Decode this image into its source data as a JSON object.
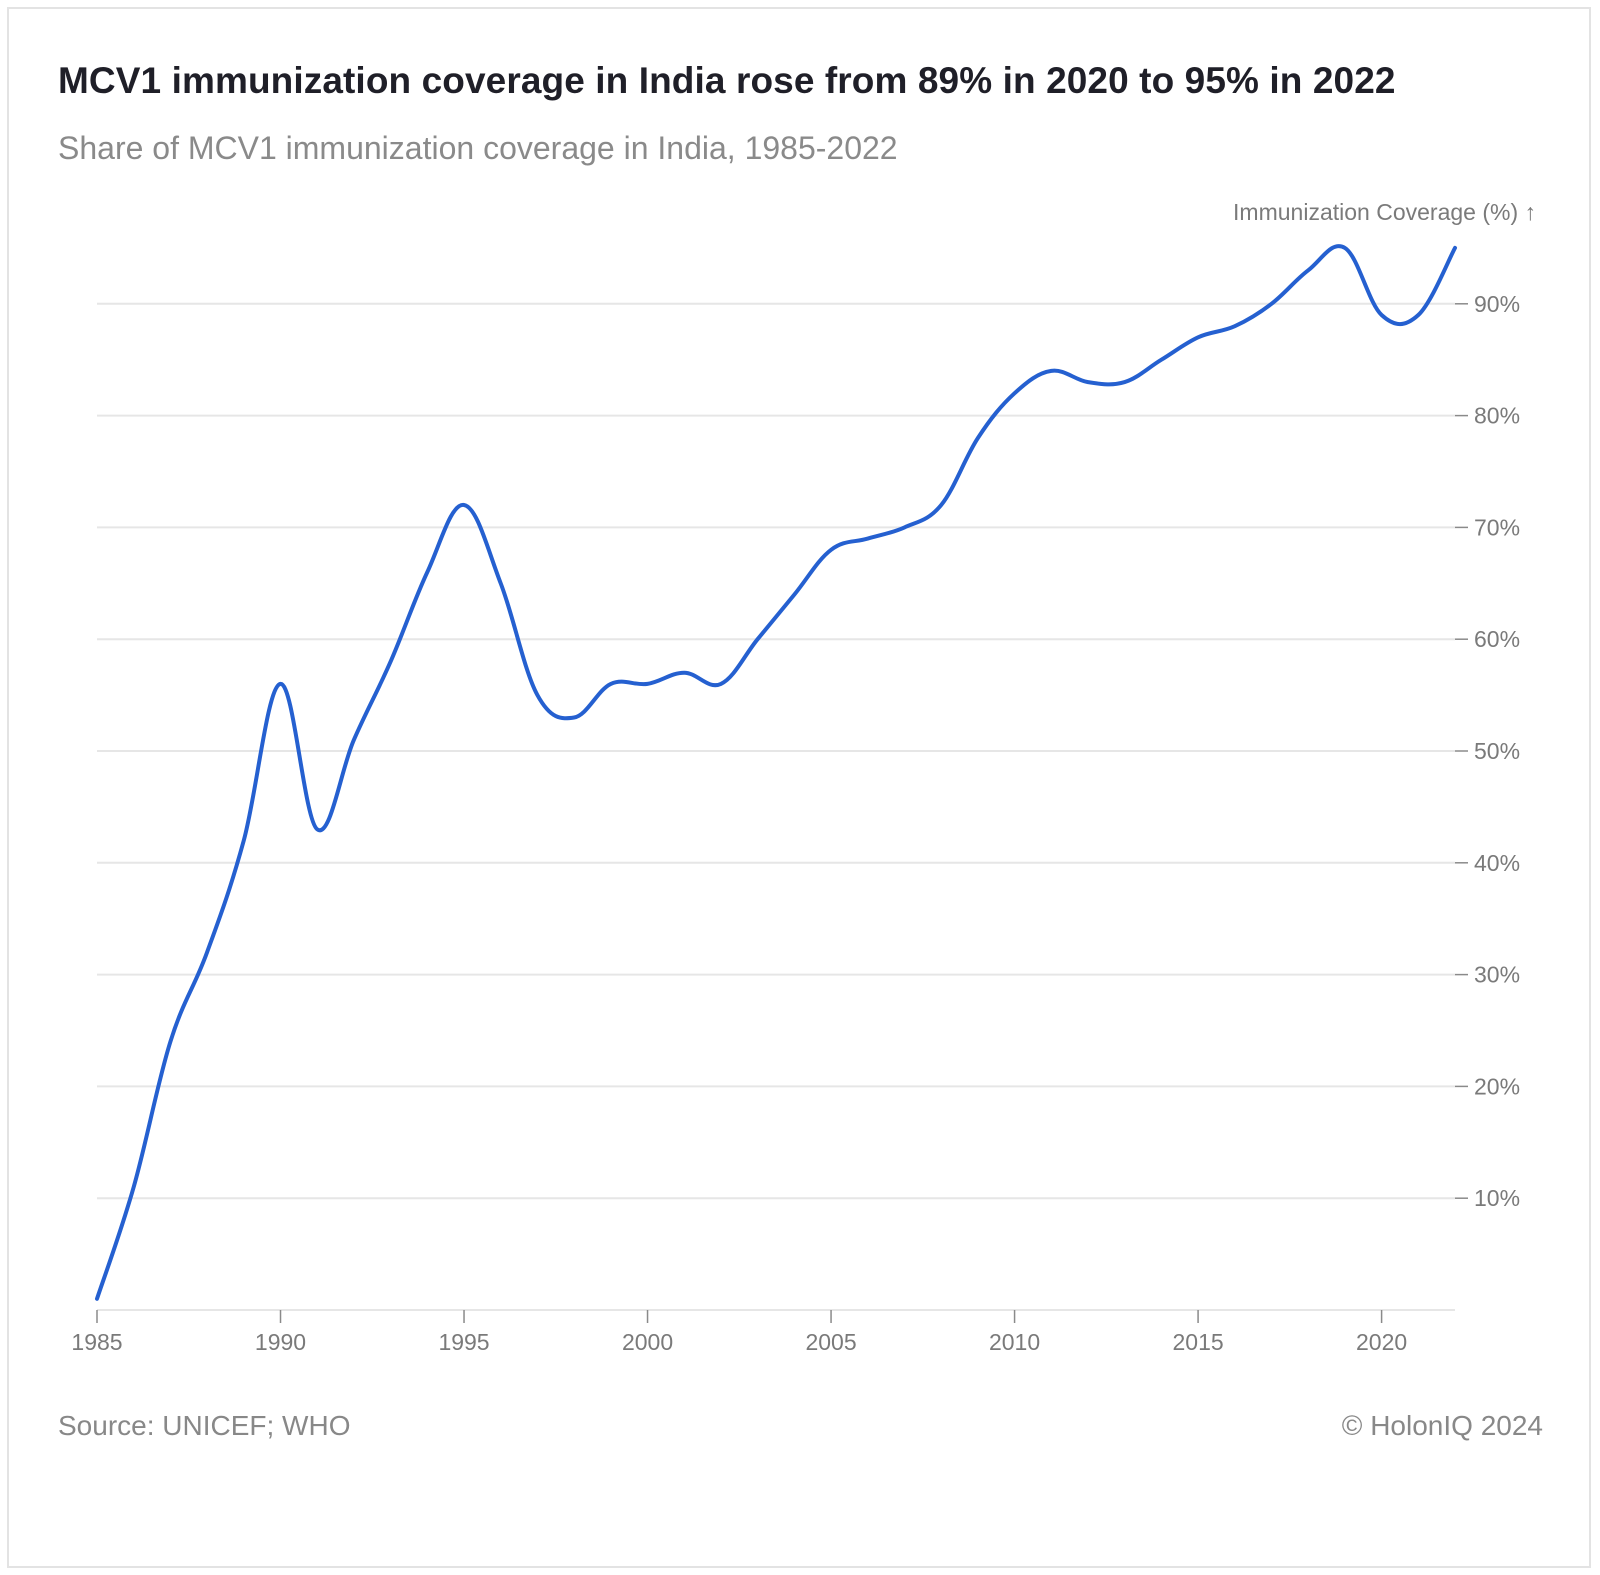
{
  "header": {
    "title": "MCV1 immunization coverage in India rose from 89% in 2020 to 95% in 2022",
    "subtitle": "Share of MCV1 immunization coverage in India, 1985-2022"
  },
  "footer": {
    "source": "Source: UNICEF; WHO",
    "copyright": "© HolonIQ 2024"
  },
  "chart_data": {
    "type": "line",
    "title": "MCV1 immunization coverage in India rose from 89% in 2020 to 95% in 2022",
    "subtitle": "Share of MCV1 immunization coverage in India, 1985-2022",
    "ylabel": "Immunization Coverage (%) ↑",
    "xlabel": "",
    "xlim": [
      1985,
      2022
    ],
    "ylim": [
      0,
      100
    ],
    "x_ticks": [
      1985,
      1990,
      1995,
      2000,
      2005,
      2010,
      2015,
      2020
    ],
    "x_tick_labels": [
      "1985",
      "1990",
      "1995",
      "2000",
      "2005",
      "2010",
      "2015",
      "2020"
    ],
    "y_ticks": [
      10,
      20,
      30,
      40,
      50,
      60,
      70,
      80,
      90
    ],
    "y_tick_labels": [
      "10%",
      "20%",
      "30%",
      "40%",
      "50%",
      "60%",
      "70%",
      "80%",
      "90%"
    ],
    "y_axis_position": "right",
    "grid": true,
    "legend": "none",
    "series": [
      {
        "color": "#2560d0",
        "x": [
          1985,
          1986,
          1987,
          1988,
          1989,
          1990,
          1991,
          1992,
          1993,
          1994,
          1995,
          1996,
          1997,
          1998,
          1999,
          2000,
          2001,
          2002,
          2003,
          2004,
          2005,
          2006,
          2007,
          2008,
          2009,
          2010,
          2011,
          2012,
          2013,
          2014,
          2015,
          2016,
          2017,
          2018,
          2019,
          2020,
          2021,
          2022
        ],
        "values": [
          1,
          11,
          24,
          32,
          42,
          56,
          43,
          51,
          58,
          66,
          72,
          65,
          55,
          53,
          56,
          56,
          57,
          56,
          60,
          64,
          68,
          69,
          70,
          72,
          78,
          82,
          84,
          83,
          83,
          85,
          87,
          88,
          90,
          93,
          95,
          89,
          89,
          95
        ]
      }
    ]
  }
}
